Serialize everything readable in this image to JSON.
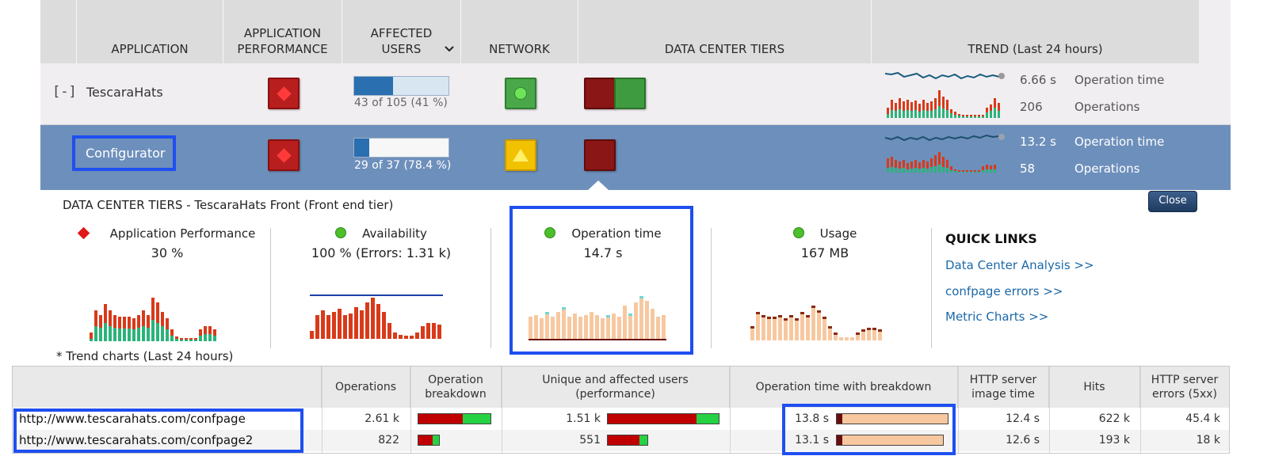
{
  "colors": {
    "header_bg": "#dcdcdc",
    "row_bg": "#f1eef1",
    "selected_row_bg": "#6d8fbb",
    "critical_red": "#b81e1e",
    "ok_green": "#4aa84a",
    "warning_yellow": "#f2c100",
    "link_blue": "#1c68a8",
    "highlight_box": "#1f4ff0"
  },
  "grid": {
    "headers": {
      "application": "APPLICATION",
      "app_performance": "APPLICATION\nPERFORMANCE",
      "affected_users": "AFFECTED\nUSERS",
      "network": "NETWORK",
      "dc_tiers": "DATA CENTER TIERS",
      "trend": "TREND (Last 24 hours)"
    },
    "sort_icon": "chevron-down-icon",
    "rows": [
      {
        "toggle": "[-]",
        "name": "TescaraHats",
        "perf_status": "critical",
        "users_fraction": 0.41,
        "users_text": "43  of 105  (41 %)",
        "network_status": "ok",
        "dc_tiers": [
          "critical",
          "ok"
        ],
        "op_time": "6.66 s",
        "op_time_label": "Operation time",
        "operations": "206",
        "operations_label": "Operations"
      },
      {
        "name": "Configurator",
        "perf_status": "critical",
        "users_fraction": 0.784,
        "users_text": "29  of 37  (78.4 %)",
        "network_status": "warning",
        "dc_tiers": [
          "critical"
        ],
        "op_time": "13.2 s",
        "op_time_label": "Operation time",
        "operations": "58",
        "operations_label": "Operations"
      }
    ]
  },
  "detail": {
    "title": "DATA CENTER TIERS - TescaraHats Front (Front end tier)",
    "close_label": "Close",
    "metrics": [
      {
        "label": "Application Performance",
        "value": "30 %",
        "status_icon": "red-diamond-icon"
      },
      {
        "label": "Availability",
        "value": "100 % (Errors: 1.31 k)",
        "status_icon": "green-dot-icon"
      },
      {
        "label": "Operation time",
        "value": "14.7 s",
        "status_icon": "green-dot-icon"
      },
      {
        "label": "Usage",
        "value": "167 MB",
        "status_icon": "green-dot-icon"
      }
    ],
    "quick_links_title": "QUICK LINKS",
    "quick_links": [
      "Data Center Analysis >>",
      "confpage errors >>",
      "Metric Charts >>"
    ],
    "footnote": "* Trend charts (Last 24 hours)"
  },
  "table": {
    "headers": {
      "url": "",
      "operations": "Operations",
      "op_breakdown": "Operation\nbreakdown",
      "users": "Unique and affected users\n(performance)",
      "op_time": "Operation time with breakdown",
      "http_image": "HTTP server\nimage time",
      "hits": "Hits",
      "http_errors": "HTTP server\nerrors (5xx)"
    },
    "rows": [
      {
        "url": "http://www.tescarahats.com/confpage",
        "operations": "2.61 k",
        "breakdown_red_fraction": 0.62,
        "users": "1.51 k",
        "users_red_fraction": 0.8,
        "op_time": "13.8 s",
        "http_image": "12.4 s",
        "hits": "622 k",
        "http_errors": "45.4 k"
      },
      {
        "url": "http://www.tescarahats.com/confpage2",
        "operations": "822",
        "breakdown_red_fraction": 0.7,
        "users": "551",
        "users_red_fraction": 0.8,
        "op_time": "13.1 s",
        "http_image": "12.6 s",
        "hits": "193 k",
        "http_errors": "18 k"
      }
    ]
  }
}
